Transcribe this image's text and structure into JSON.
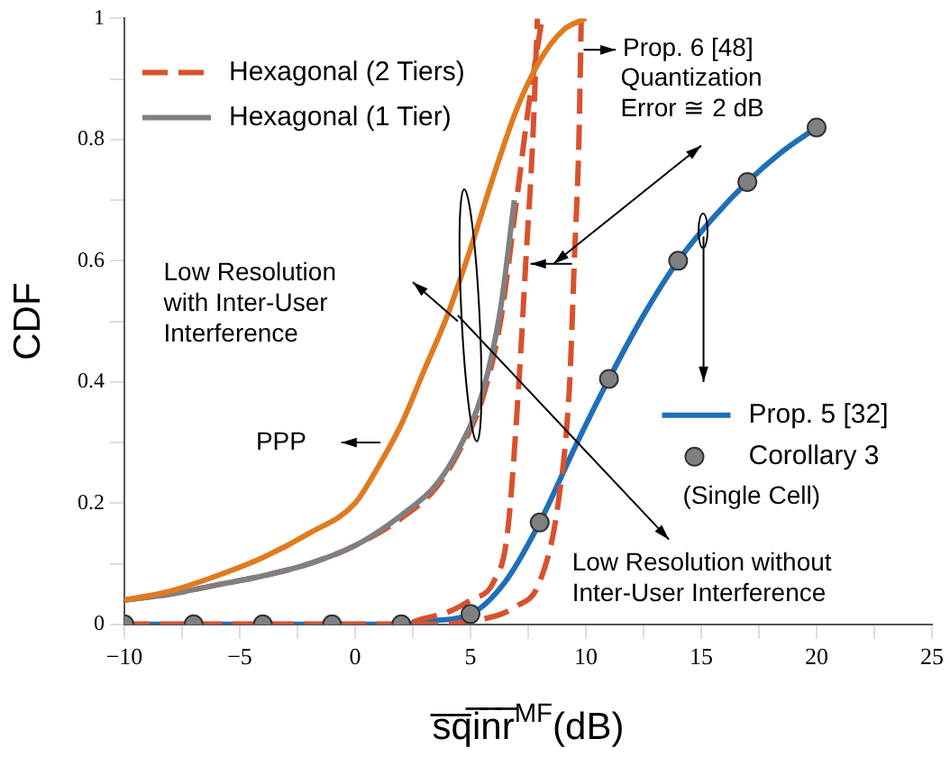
{
  "chart_data": {
    "type": "line",
    "xlabel": "s̅q̅i̅n̅r̅$^{MF}$(dB)",
    "ylabel": "CDF",
    "xlim": [
      -10,
      25
    ],
    "xticks": [
      -10,
      {
        "value": -7.5,
        "label": null
      },
      -5,
      {
        "value": -2.5,
        "label": null
      },
      0,
      {
        "value": 2.5,
        "label": null
      },
      5,
      {
        "value": 7.5,
        "label": null
      },
      10,
      {
        "value": 12.5,
        "label": null
      },
      15,
      {
        "value": 17.5,
        "label": null
      },
      20,
      {
        "value": 22.5,
        "label": null
      },
      25
    ],
    "ylim": [
      0,
      1
    ],
    "yticks": [
      0,
      {
        "value": 0.1,
        "label": null
      },
      0.2,
      {
        "value": 0.3,
        "label": null
      },
      0.4,
      {
        "value": 0.5,
        "label": null
      },
      0.6,
      {
        "value": 0.7,
        "label": null
      },
      0.8,
      {
        "value": 0.9,
        "label": null
      },
      1
    ],
    "grid": false,
    "legend": "top left",
    "marker": "none",
    "series": [
      {
        "name": "PPP",
        "type": "line",
        "color": "#e07b1f",
        "x": [
          -10,
          -8,
          -6,
          -4,
          -2,
          0,
          1,
          2,
          3,
          4,
          5,
          6,
          7,
          8,
          9,
          10
        ],
        "values": [
          0.04,
          0.055,
          0.08,
          0.11,
          0.15,
          0.2,
          0.26,
          0.33,
          0.42,
          0.51,
          0.62,
          0.74,
          0.85,
          0.93,
          0.98,
          1
        ]
      },
      {
        "name": "Hexagonal (1 Tier)",
        "type": "line",
        "color": "#808080",
        "x": [
          -10,
          -8,
          -6,
          -4,
          -2,
          0,
          2,
          3.5,
          4.5,
          5.5,
          6.3,
          6.9
        ],
        "values": [
          0.04,
          0.05,
          0.065,
          0.08,
          0.1,
          0.13,
          0.18,
          0.23,
          0.29,
          0.38,
          0.52,
          0.7
        ]
      },
      {
        "name": "Hexagonal (2 Tiers)",
        "type": "line",
        "color": "#d9512c",
        "line_style": "dashed",
        "x": [
          -10,
          -8,
          -6,
          -4,
          -2,
          0,
          2,
          3.5,
          4.5,
          5.5,
          6.3,
          7,
          7.5,
          8.1
        ],
        "values": [
          0.04,
          0.05,
          0.065,
          0.08,
          0.1,
          0.13,
          0.175,
          0.225,
          0.285,
          0.37,
          0.5,
          0.7,
          0.85,
          1
        ]
      },
      {
        "type": "line",
        "color": "#d9512c",
        "line_style": "dashed",
        "x": [
          -10,
          2,
          3,
          4,
          5,
          6,
          6.6,
          7.1,
          7.4,
          7.7,
          7.9
        ],
        "values": [
          0,
          0,
          0.01,
          0.02,
          0.04,
          0.07,
          0.15,
          0.4,
          0.6,
          0.8,
          1
        ]
      },
      {
        "type": "line",
        "color": "#d9512c",
        "line_style": "dashed",
        "x": [
          -10,
          3,
          5,
          7,
          8,
          8.8,
          9.3,
          9.5,
          9.7,
          9.8
        ],
        "values": [
          0,
          0,
          0.005,
          0.03,
          0.07,
          0.2,
          0.4,
          0.6,
          0.8,
          1
        ]
      },
      {
        "name": "Prop. 5 [32]",
        "type": "line",
        "color": "#1f6fb8",
        "x": [
          -10,
          2,
          3,
          5,
          6.5,
          8,
          9.5,
          11,
          12.5,
          14,
          15.5,
          17,
          18.5,
          20
        ],
        "values": [
          0,
          0,
          0.005,
          0.017,
          0.07,
          0.168,
          0.29,
          0.405,
          0.51,
          0.6,
          0.67,
          0.73,
          0.78,
          0.82
        ]
      },
      {
        "name": "Corollary 3",
        "type": "scatter",
        "color": "#808080",
        "marker": "circle",
        "x": [
          -10,
          -7,
          -4,
          -1,
          2,
          5,
          8,
          11,
          14,
          17,
          20
        ],
        "values": [
          0,
          0,
          0,
          0,
          0,
          0.017,
          0.168,
          0.405,
          0.6,
          0.73,
          0.82
        ]
      }
    ],
    "annotations": [
      "Prop. 6 [48]",
      "Quantization\nError ≅ 2 dB",
      "Low Resolution\nwith Inter-User\nInterference",
      "Low Resolution without\nInter-User Interference",
      "(Single Cell)"
    ]
  }
}
